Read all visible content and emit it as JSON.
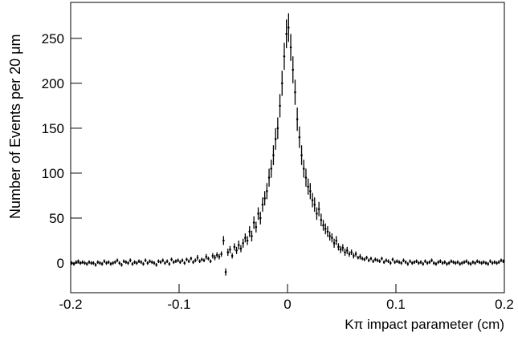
{
  "chart_data": {
    "type": "errorbar",
    "x_label": "Kπ impact parameter (cm)",
    "y_label": "Number of Events per 20 μm",
    "color": "#000000",
    "xlim": [
      -0.2,
      0.2
    ],
    "xticks": [
      -0.2,
      -0.1,
      0,
      0.1,
      0.2
    ],
    "ylim": [
      -33,
      290
    ],
    "yticks": [
      0,
      50,
      100,
      150,
      200,
      250
    ],
    "x": [
      -0.199,
      -0.197,
      -0.195,
      -0.193,
      -0.191,
      -0.189,
      -0.187,
      -0.185,
      -0.183,
      -0.181,
      -0.179,
      -0.177,
      -0.175,
      -0.173,
      -0.171,
      -0.169,
      -0.167,
      -0.165,
      -0.163,
      -0.161,
      -0.159,
      -0.157,
      -0.155,
      -0.153,
      -0.151,
      -0.149,
      -0.147,
      -0.145,
      -0.143,
      -0.141,
      -0.139,
      -0.137,
      -0.135,
      -0.133,
      -0.131,
      -0.129,
      -0.127,
      -0.125,
      -0.123,
      -0.121,
      -0.119,
      -0.117,
      -0.115,
      -0.113,
      -0.111,
      -0.109,
      -0.107,
      -0.105,
      -0.103,
      -0.101,
      -0.099,
      -0.097,
      -0.095,
      -0.093,
      -0.091,
      -0.089,
      -0.087,
      -0.085,
      -0.083,
      -0.081,
      -0.079,
      -0.077,
      -0.075,
      -0.073,
      -0.071,
      -0.069,
      -0.067,
      -0.065,
      -0.063,
      -0.061,
      -0.059,
      -0.057,
      -0.055,
      -0.053,
      -0.051,
      -0.049,
      -0.047,
      -0.045,
      -0.043,
      -0.041,
      -0.039,
      -0.037,
      -0.035,
      -0.033,
      -0.031,
      -0.029,
      -0.027,
      -0.025,
      -0.023,
      -0.021,
      -0.019,
      -0.017,
      -0.015,
      -0.013,
      -0.011,
      -0.009,
      -0.007,
      -0.005,
      -0.003,
      -0.001,
      0.001,
      0.003,
      0.005,
      0.007,
      0.009,
      0.011,
      0.013,
      0.015,
      0.017,
      0.019,
      0.021,
      0.023,
      0.025,
      0.027,
      0.029,
      0.031,
      0.033,
      0.035,
      0.037,
      0.039,
      0.041,
      0.043,
      0.045,
      0.047,
      0.049,
      0.051,
      0.053,
      0.055,
      0.057,
      0.059,
      0.061,
      0.063,
      0.065,
      0.067,
      0.069,
      0.071,
      0.073,
      0.075,
      0.077,
      0.079,
      0.081,
      0.083,
      0.085,
      0.087,
      0.089,
      0.091,
      0.093,
      0.095,
      0.097,
      0.099,
      0.101,
      0.103,
      0.105,
      0.107,
      0.109,
      0.111,
      0.113,
      0.115,
      0.117,
      0.119,
      0.121,
      0.123,
      0.125,
      0.127,
      0.129,
      0.131,
      0.133,
      0.135,
      0.137,
      0.139,
      0.141,
      0.143,
      0.145,
      0.147,
      0.149,
      0.151,
      0.153,
      0.155,
      0.157,
      0.159,
      0.161,
      0.163,
      0.165,
      0.167,
      0.169,
      0.171,
      0.173,
      0.175,
      0.177,
      0.179,
      0.181,
      0.183,
      0.185,
      0.187,
      0.189,
      0.191,
      0.193,
      0.195,
      0.197,
      0.199
    ],
    "values": [
      0,
      -1,
      1,
      2,
      0,
      1,
      0,
      -1,
      1,
      0,
      0,
      -2,
      1,
      0,
      -1,
      2,
      0,
      1,
      -1,
      0,
      1,
      3,
      0,
      -2,
      2,
      1,
      0,
      3,
      -1,
      1,
      0,
      2,
      1,
      -1,
      3,
      0,
      2,
      1,
      0,
      -2,
      2,
      1,
      3,
      0,
      2,
      -1,
      4,
      1,
      2,
      3,
      1,
      3,
      0,
      4,
      2,
      5,
      1,
      3,
      6,
      2,
      4,
      3,
      7,
      5,
      2,
      8,
      6,
      9,
      7,
      10,
      25,
      -10,
      12,
      15,
      8,
      18,
      14,
      20,
      16,
      22,
      28,
      25,
      35,
      30,
      45,
      40,
      55,
      50,
      65,
      72,
      80,
      95,
      105,
      120,
      138,
      150,
      175,
      200,
      230,
      255,
      262,
      240,
      215,
      190,
      160,
      140,
      120,
      105,
      95,
      85,
      80,
      70,
      65,
      55,
      60,
      48,
      42,
      38,
      35,
      30,
      28,
      22,
      25,
      18,
      15,
      17,
      12,
      14,
      10,
      12,
      8,
      10,
      6,
      7,
      5,
      4,
      6,
      3,
      5,
      2,
      4,
      3,
      2,
      5,
      1,
      3,
      2,
      0,
      4,
      1,
      2,
      1,
      0,
      3,
      1,
      -1,
      2,
      0,
      1,
      2,
      0,
      1,
      -1,
      2,
      0,
      1,
      3,
      0,
      -1,
      1,
      2,
      0,
      1,
      -1,
      0,
      2,
      1,
      0,
      1,
      -1,
      0,
      1,
      2,
      0,
      -1,
      1,
      0,
      2,
      1,
      0,
      1,
      0,
      -1,
      2,
      0,
      1,
      0,
      1,
      3,
      2
    ],
    "errors": [
      2,
      2,
      2,
      2,
      2,
      2,
      2,
      2,
      2,
      2,
      2,
      2,
      2,
      2,
      2,
      2,
      2,
      2,
      2,
      2,
      2,
      2,
      2,
      2,
      2,
      2,
      2,
      2,
      2,
      2,
      2,
      2,
      2,
      2,
      2,
      2,
      2,
      2,
      2,
      2,
      2,
      2,
      2,
      2,
      2,
      2,
      2,
      2,
      2,
      2,
      2,
      2,
      2,
      2,
      2,
      2,
      2,
      2,
      3,
      2,
      2,
      2,
      3,
      2,
      2,
      3,
      3,
      3,
      3,
      3,
      5,
      4,
      4,
      4,
      3,
      4,
      4,
      5,
      4,
      5,
      5,
      5,
      6,
      6,
      7,
      6,
      7,
      7,
      8,
      8,
      9,
      10,
      10,
      11,
      12,
      12,
      13,
      14,
      15,
      16,
      16,
      15,
      15,
      14,
      13,
      12,
      11,
      10,
      10,
      9,
      9,
      8,
      8,
      7,
      8,
      7,
      6,
      6,
      6,
      5,
      5,
      5,
      5,
      4,
      4,
      4,
      4,
      4,
      3,
      3,
      3,
      3,
      2,
      3,
      2,
      2,
      2,
      2,
      2,
      2,
      2,
      2,
      2,
      2,
      2,
      2,
      2,
      2,
      2,
      2,
      2,
      2,
      2,
      2,
      2,
      2,
      2,
      2,
      2,
      2,
      2,
      2,
      2,
      2,
      2,
      2,
      2,
      2,
      2,
      2,
      2,
      2,
      2,
      2,
      2,
      2,
      2,
      2,
      2,
      2,
      2,
      2,
      2,
      2,
      2,
      2,
      2,
      2,
      2,
      2,
      2,
      2,
      2,
      2,
      2,
      2,
      2,
      2,
      2,
      2
    ]
  }
}
